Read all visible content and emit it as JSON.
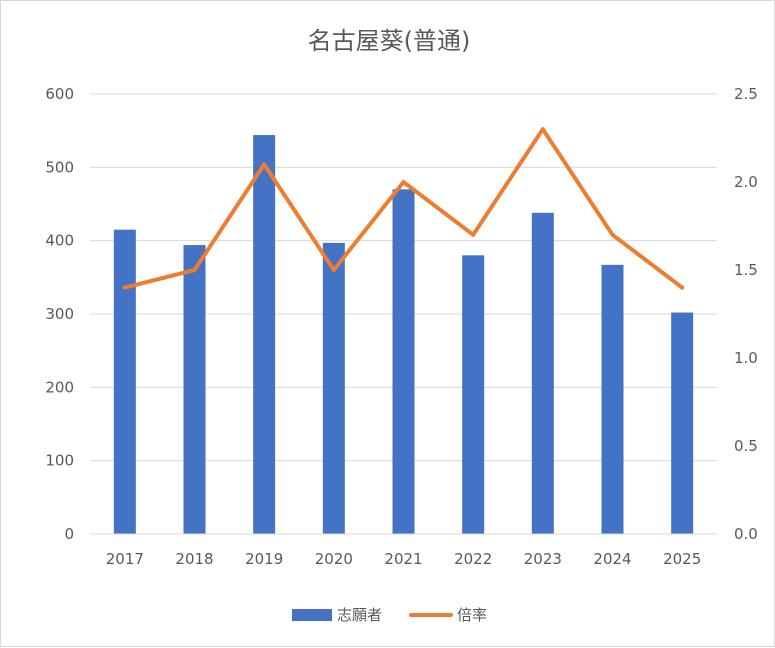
{
  "chart_data": {
    "type": "bar",
    "title": "名古屋葵(普通)",
    "categories": [
      "2017",
      "2018",
      "2019",
      "2020",
      "2021",
      "2022",
      "2023",
      "2024",
      "2025"
    ],
    "series": [
      {
        "name": "志願者",
        "type": "bar",
        "axis": "left",
        "color": "#4472C4",
        "values": [
          415,
          394,
          544,
          397,
          470,
          380,
          438,
          367,
          302
        ]
      },
      {
        "name": "倍率",
        "type": "line",
        "axis": "right",
        "color": "#ED7D31",
        "values": [
          1.4,
          1.5,
          2.1,
          1.5,
          2.0,
          1.7,
          2.3,
          1.7,
          1.4
        ]
      }
    ],
    "y_left": {
      "min": 0,
      "max": 600,
      "step": 100,
      "ticks": [
        "0",
        "100",
        "200",
        "300",
        "400",
        "500",
        "600"
      ]
    },
    "y_right": {
      "min": 0,
      "max": 2.5,
      "step": 0.5,
      "ticks": [
        "0.0",
        "0.5",
        "1.0",
        "1.5",
        "2.0",
        "2.5"
      ]
    },
    "grid": true,
    "legend": "bottom"
  }
}
